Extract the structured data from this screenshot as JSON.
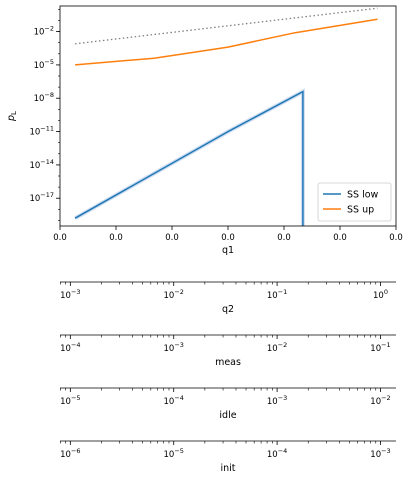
{
  "chart_data": {
    "type": "line",
    "xlabel": "q1",
    "ylabel": "p_L",
    "yscale": "log",
    "xlim": [
      0.0,
      0.1
    ],
    "ylim_log10": [
      -19.5,
      0.3
    ],
    "x_tick_labels": [
      "0.0",
      "0.0",
      "0.0",
      "0.0",
      "0.0",
      "0.0",
      "0.0"
    ],
    "y_ticks": [
      {
        "exp": -17,
        "label": "-17"
      },
      {
        "exp": -14,
        "label": "-14"
      },
      {
        "exp": -11,
        "label": "-11"
      },
      {
        "exp": -8,
        "label": "-8"
      },
      {
        "exp": -5,
        "label": "-5"
      },
      {
        "exp": -2,
        "label": "-2"
      }
    ],
    "ytick_base": "10",
    "series": [
      {
        "name": "SS low",
        "color": "#1f77b4",
        "style": "solid",
        "x": [
          0.0045,
          0.05,
          0.0723,
          0.0723
        ],
        "y_log10": [
          -18.8,
          -11.0,
          -7.4,
          -20.5
        ]
      },
      {
        "name": "SS up",
        "color": "#ff7f0e",
        "style": "solid",
        "x": [
          0.0045,
          0.028,
          0.05,
          0.07,
          0.0945
        ],
        "y_log10": [
          -5.0,
          -4.4,
          -3.4,
          -2.1,
          -0.9
        ]
      },
      {
        "name": "",
        "color": "#7f7f7f",
        "style": "dotted",
        "x": [
          0.0045,
          0.0945
        ],
        "y_log10": [
          -3.1,
          0.1
        ]
      }
    ],
    "legend": {
      "position": "lower-right",
      "entries": [
        {
          "label": "SS low",
          "color": "#1f77b4"
        },
        {
          "label": "SS up",
          "color": "#ff7f0e"
        }
      ]
    },
    "secondary_axes": [
      {
        "label": "q2",
        "tick_exps": [
          "-3",
          "-2",
          "-1",
          "0"
        ],
        "range_log10": [
          -3.1,
          0.15
        ]
      },
      {
        "label": "meas",
        "tick_exps": [
          "-4",
          "-3",
          "-2",
          "-1"
        ],
        "range_log10": [
          -4.1,
          -0.85
        ]
      },
      {
        "label": "idle",
        "tick_exps": [
          "-5",
          "-4",
          "-3",
          "-2"
        ],
        "range_log10": [
          -5.1,
          -1.85
        ]
      },
      {
        "label": "init",
        "tick_exps": [
          "-6",
          "-5",
          "-4",
          "-3"
        ],
        "range_log10": [
          -6.1,
          -2.85
        ]
      }
    ]
  }
}
